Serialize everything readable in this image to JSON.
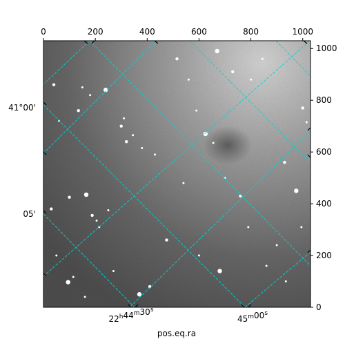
{
  "chart_data": {
    "type": "scatter",
    "title": "",
    "xlabel": "pos.eq.ra",
    "ylabel": "",
    "pixel_axes": {
      "x_ticks": [
        0,
        200,
        400,
        600,
        800,
        1000
      ],
      "y_ticks": [
        0,
        200,
        400,
        600,
        800,
        1000
      ],
      "xlim": [
        0,
        1030
      ],
      "ylim": [
        0,
        1030
      ]
    },
    "world_axes": {
      "ra_tick_labels": [
        "22h44m30s",
        "45m00s"
      ],
      "dec_tick_labels": [
        "41°00'",
        "05'"
      ]
    },
    "image": {
      "kind": "grayscale star field",
      "background": "noisy gray",
      "grid_color": "#00d5d5",
      "grid": true
    },
    "stars": [
      {
        "x": 95,
        "y": 97
      },
      {
        "x": 115,
        "y": 117
      },
      {
        "x": 160,
        "y": 40
      },
      {
        "x": 188,
        "y": 355
      },
      {
        "x": 205,
        "y": 335
      },
      {
        "x": 215,
        "y": 310
      },
      {
        "x": 100,
        "y": 425
      },
      {
        "x": 165,
        "y": 435
      },
      {
        "x": 250,
        "y": 375
      },
      {
        "x": 300,
        "y": 700
      },
      {
        "x": 310,
        "y": 730
      },
      {
        "x": 345,
        "y": 665
      },
      {
        "x": 135,
        "y": 760
      },
      {
        "x": 180,
        "y": 820
      },
      {
        "x": 240,
        "y": 840
      },
      {
        "x": 320,
        "y": 640
      },
      {
        "x": 380,
        "y": 615
      },
      {
        "x": 430,
        "y": 590
      },
      {
        "x": 515,
        "y": 960
      },
      {
        "x": 560,
        "y": 880
      },
      {
        "x": 590,
        "y": 760
      },
      {
        "x": 625,
        "y": 670
      },
      {
        "x": 655,
        "y": 635
      },
      {
        "x": 700,
        "y": 500
      },
      {
        "x": 760,
        "y": 430
      },
      {
        "x": 790,
        "y": 310
      },
      {
        "x": 860,
        "y": 160
      },
      {
        "x": 930,
        "y": 560
      },
      {
        "x": 975,
        "y": 450
      },
      {
        "x": 995,
        "y": 310
      },
      {
        "x": 1000,
        "y": 770
      },
      {
        "x": 1015,
        "y": 715
      },
      {
        "x": 800,
        "y": 880
      },
      {
        "x": 730,
        "y": 910
      },
      {
        "x": 845,
        "y": 960
      },
      {
        "x": 670,
        "y": 990
      },
      {
        "x": 40,
        "y": 860
      },
      {
        "x": 60,
        "y": 720
      },
      {
        "x": 150,
        "y": 850
      },
      {
        "x": 475,
        "y": 260
      },
      {
        "x": 540,
        "y": 480
      },
      {
        "x": 600,
        "y": 200
      },
      {
        "x": 680,
        "y": 140
      },
      {
        "x": 900,
        "y": 240
      },
      {
        "x": 935,
        "y": 100
      },
      {
        "x": 410,
        "y": 80
      },
      {
        "x": 270,
        "y": 140
      },
      {
        "x": 50,
        "y": 200
      },
      {
        "x": 30,
        "y": 380
      },
      {
        "x": 370,
        "y": 50
      }
    ]
  }
}
